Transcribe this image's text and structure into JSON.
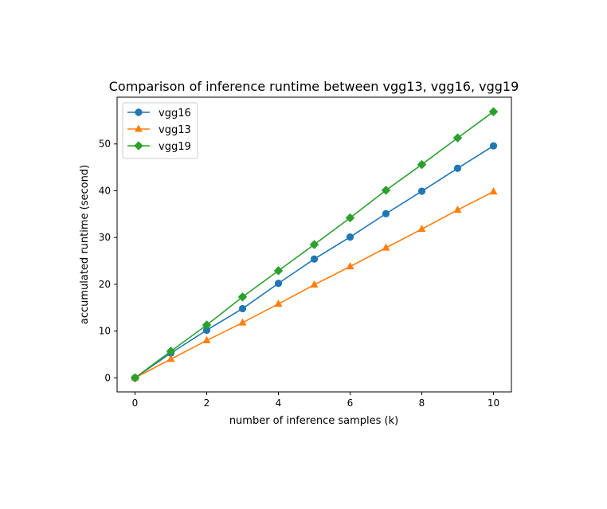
{
  "chart_data": {
    "type": "line",
    "title": "Comparison of inference runtime between vgg13, vgg16, vgg19",
    "xlabel": "number of inference samples (k)",
    "ylabel": "accumulated runtime (second)",
    "xlim": [
      -0.5,
      10.5
    ],
    "ylim": [
      -3,
      60
    ],
    "xticks": [
      0,
      2,
      4,
      6,
      8,
      10
    ],
    "yticks": [
      0,
      10,
      20,
      30,
      40,
      50
    ],
    "grid": false,
    "legend_position": "top-left",
    "x": [
      0,
      1,
      2,
      3,
      4,
      5,
      6,
      7,
      8,
      9,
      10
    ],
    "series": [
      {
        "name": "vgg16",
        "color": "#1f77b4",
        "marker": "circle",
        "values": [
          0,
          5.3,
          10.2,
          14.8,
          20.2,
          25.4,
          30.1,
          35.1,
          39.9,
          44.8,
          49.6
        ]
      },
      {
        "name": "vgg13",
        "color": "#ff7f0e",
        "marker": "triangle",
        "values": [
          0,
          4.0,
          8.0,
          11.8,
          15.8,
          19.9,
          23.8,
          27.8,
          31.8,
          35.9,
          39.8
        ]
      },
      {
        "name": "vgg19",
        "color": "#2ca02c",
        "marker": "diamond",
        "values": [
          0,
          5.7,
          11.3,
          17.3,
          22.9,
          28.5,
          34.2,
          40.1,
          45.6,
          51.3,
          56.9
        ]
      }
    ]
  }
}
